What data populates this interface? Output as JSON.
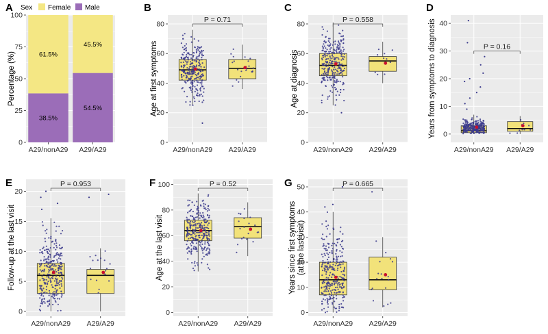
{
  "colors": {
    "panel_bg": "#ebebeb",
    "grid": "#ffffff",
    "box_fill": "#f2e27a",
    "box_stroke": "#3a3a3a",
    "point": "#3b3a8c",
    "mean": "#c8102e",
    "female": "#f4e784",
    "male": "#9b6db8",
    "bracket": "#555555"
  },
  "legend": {
    "title": "Sex",
    "items": [
      "Female",
      "Male"
    ]
  },
  "chart_data": [
    {
      "panel": "A",
      "type": "bar",
      "stacked": true,
      "ylabel": "Percentage (%)",
      "xlabel": "",
      "ylim": [
        0,
        100
      ],
      "yticks": [
        0,
        25,
        50,
        75,
        100
      ],
      "categories": [
        "A29/nonA29",
        "A29/A29"
      ],
      "series": [
        {
          "name": "Male",
          "values": [
            38.5,
            54.5
          ],
          "labels": [
            "38.5%",
            "54.5%"
          ]
        },
        {
          "name": "Female",
          "values": [
            61.5,
            45.5
          ],
          "labels": [
            "61.5%",
            "45.5%"
          ]
        }
      ]
    },
    {
      "panel": "B",
      "type": "box",
      "ylabel": "Age at first symptoms",
      "ylim": [
        0,
        86
      ],
      "yticks": [
        0,
        20,
        40,
        60,
        80
      ],
      "categories": [
        "A29/nonA29",
        "A29/A29"
      ],
      "p_value": "P = 0.71",
      "groups": [
        {
          "q1": 42,
          "median": 49,
          "q3": 56,
          "whisker_low": 25,
          "whisker_high": 76,
          "mean": 49.5,
          "n_points": 280,
          "outliers": [
            13
          ]
        },
        {
          "q1": 43,
          "median": 50,
          "q3": 56,
          "whisker_low": 36,
          "whisker_high": 66,
          "mean": 50.5,
          "n_points": 22,
          "outliers": []
        }
      ]
    },
    {
      "panel": "C",
      "type": "box",
      "ylabel": "Age at diagnosis",
      "ylim": [
        0,
        86
      ],
      "yticks": [
        0,
        20,
        40,
        60,
        80
      ],
      "categories": [
        "A29/nonA29",
        "A29/A29"
      ],
      "p_value": "P = 0.558",
      "groups": [
        {
          "q1": 45,
          "median": 52,
          "q3": 60,
          "whisker_low": 25,
          "whisker_high": 81,
          "mean": 53,
          "n_points": 290,
          "outliers": [
            20
          ]
        },
        {
          "q1": 48,
          "median": 55,
          "q3": 58,
          "whisker_low": 40,
          "whisker_high": 68,
          "mean": 53.5,
          "n_points": 10,
          "outliers": []
        }
      ]
    },
    {
      "panel": "D",
      "type": "box",
      "ylabel": "Years from symptoms to diagnosis",
      "ylim": [
        -3,
        43
      ],
      "yticks": [
        0,
        10,
        20,
        30,
        40
      ],
      "categories": [
        "A29/nonA29",
        "A29/A29"
      ],
      "p_value": "P = 0.16",
      "groups": [
        {
          "q1": 0.5,
          "median": 1.2,
          "q3": 3,
          "whisker_low": 0,
          "whisker_high": 7,
          "mean": 2.5,
          "n_points": 290,
          "outliers": [
            9,
            11,
            13,
            15,
            17,
            19,
            20,
            22,
            25,
            28,
            33,
            41
          ]
        },
        {
          "q1": 1,
          "median": 2,
          "q3": 4.5,
          "whisker_low": 0,
          "whisker_high": 6.5,
          "mean": 3,
          "n_points": 10,
          "outliers": []
        }
      ]
    },
    {
      "panel": "E",
      "type": "box",
      "ylabel": "Follow-up at the last visit",
      "ylim": [
        -0.8,
        22
      ],
      "yticks": [
        0,
        5,
        10,
        15,
        20
      ],
      "categories": [
        "A29/nonA29",
        "A29/A29"
      ],
      "p_value": "P = 0.953",
      "groups": [
        {
          "q1": 3,
          "median": 6,
          "q3": 8,
          "whisker_low": 0,
          "whisker_high": 15.5,
          "mean": 6.5,
          "n_points": 300,
          "outliers": [
            17,
            18,
            19,
            20
          ]
        },
        {
          "q1": 3,
          "median": 6,
          "q3": 7,
          "whisker_low": 0,
          "whisker_high": 10.5,
          "mean": 6.5,
          "n_points": 18,
          "outliers": [
            19,
            19.5
          ]
        }
      ]
    },
    {
      "panel": "F",
      "type": "box",
      "ylabel": "Age at the last visit",
      "ylim": [
        -3,
        104
      ],
      "yticks": [
        0,
        20,
        40,
        60,
        80,
        100
      ],
      "categories": [
        "A29/nonA29",
        "A29/A29"
      ],
      "p_value": "P = 0.52",
      "groups": [
        {
          "q1": 56,
          "median": 64,
          "q3": 72,
          "whisker_low": 32,
          "whisker_high": 93,
          "mean": 64,
          "n_points": 300,
          "outliers": []
        },
        {
          "q1": 58,
          "median": 67,
          "q3": 74,
          "whisker_low": 44,
          "whisker_high": 86,
          "mean": 65,
          "n_points": 20,
          "outliers": []
        }
      ]
    },
    {
      "panel": "G",
      "type": "box",
      "ylabel": "Years since first symptoms\n(at the last visit)",
      "ylim": [
        -1.5,
        53
      ],
      "yticks": [
        0,
        10,
        20,
        30,
        40,
        50
      ],
      "categories": [
        "A29/nonA29",
        "A29/A29"
      ],
      "p_value": "P = 0.665",
      "groups": [
        {
          "q1": 7,
          "median": 13,
          "q3": 20,
          "whisker_low": 0,
          "whisker_high": 40,
          "mean": 14,
          "n_points": 300,
          "outliers": [
            42,
            43,
            50
          ]
        },
        {
          "q1": 9,
          "median": 13,
          "q3": 22,
          "whisker_low": 2,
          "whisker_high": 30,
          "mean": 15,
          "n_points": 18,
          "outliers": [
            48
          ]
        }
      ]
    }
  ]
}
